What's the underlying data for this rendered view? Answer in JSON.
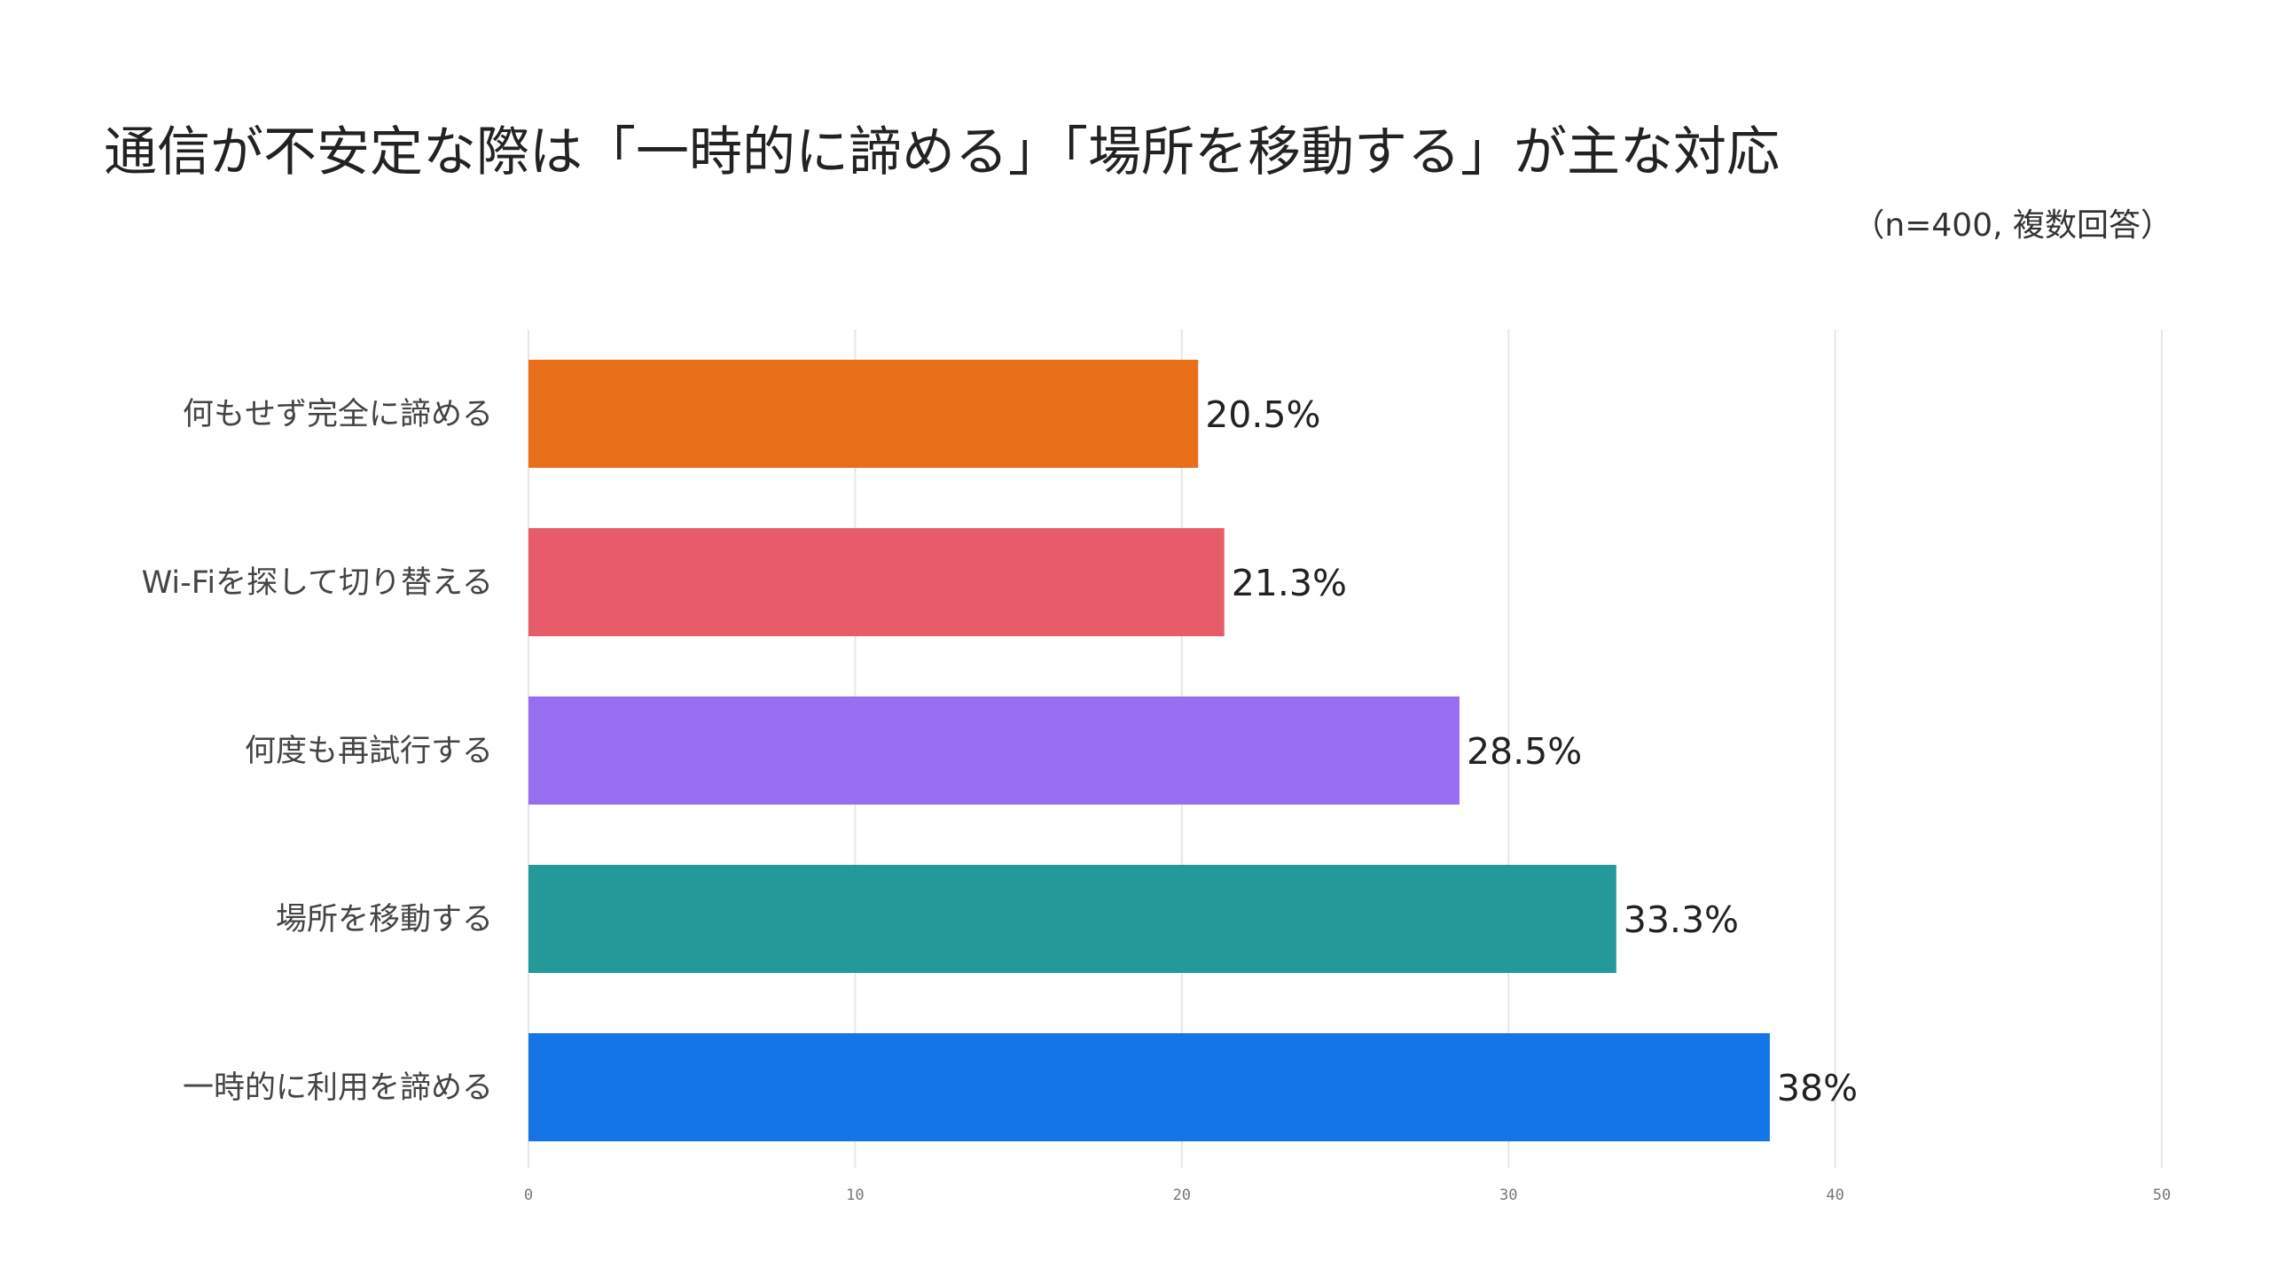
{
  "chart_data": {
    "type": "bar",
    "orientation": "horizontal",
    "title": "通信が不安定な際は「一時的に諦める」「場所を移動する」が主な対応",
    "subtitle": "（n=400, 複数回答）",
    "categories": [
      "何もせず完全に諦める",
      "Wi-Fiを探して切り替える",
      "何度も再試行する",
      "場所を移動する",
      "一時的に利用を諦める"
    ],
    "values": [
      20.5,
      21.3,
      28.5,
      33.3,
      38
    ],
    "value_labels": [
      "20.5%",
      "21.3%",
      "28.5%",
      "33.3%",
      "38%"
    ],
    "colors": [
      "#E86E1A",
      "#E85C6A",
      "#976EF2",
      "#23999A",
      "#1475E6"
    ],
    "xlim": [
      0,
      50
    ],
    "xticks": [
      0,
      10,
      20,
      30,
      40,
      50
    ],
    "grid": true,
    "legend": "none"
  }
}
